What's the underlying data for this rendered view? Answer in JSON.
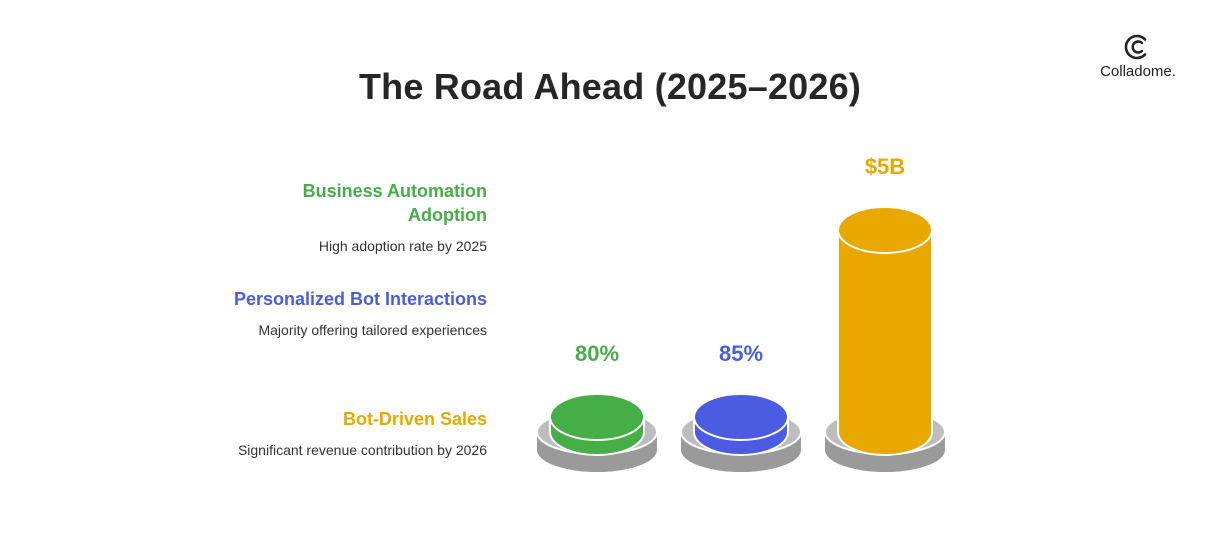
{
  "title": "The Road Ahead (2025–2026)",
  "logo": {
    "name": "Colladome.",
    "icon": "colladome-logo-icon"
  },
  "colors": {
    "green": "#45AE47",
    "blue": "#4B5CE3",
    "gold": "#E8A800",
    "base": "#A6A6A6"
  },
  "legend": [
    {
      "title": "Business Automation Adoption",
      "description": "High adoption rate by 2025",
      "color": "#45AE47"
    },
    {
      "title": "Personalized Bot Interactions",
      "description": "Majority offering tailored experiences",
      "color": "#4B5CE3"
    },
    {
      "title": "Bot-Driven Sales",
      "description": "Significant revenue contribution by 2026",
      "color": "#E8A800"
    }
  ],
  "chart_data": {
    "type": "bar",
    "categories": [
      "Business Automation Adoption",
      "Personalized Bot Interactions",
      "Bot-Driven Sales"
    ],
    "labels": [
      "80%",
      "85%",
      "$5B"
    ],
    "values": [
      80,
      85,
      5
    ],
    "units": [
      "%",
      "%",
      "$B"
    ],
    "colors": [
      "#45AE47",
      "#4B5CE3",
      "#E8A800"
    ],
    "grid": false,
    "legend": "left"
  }
}
